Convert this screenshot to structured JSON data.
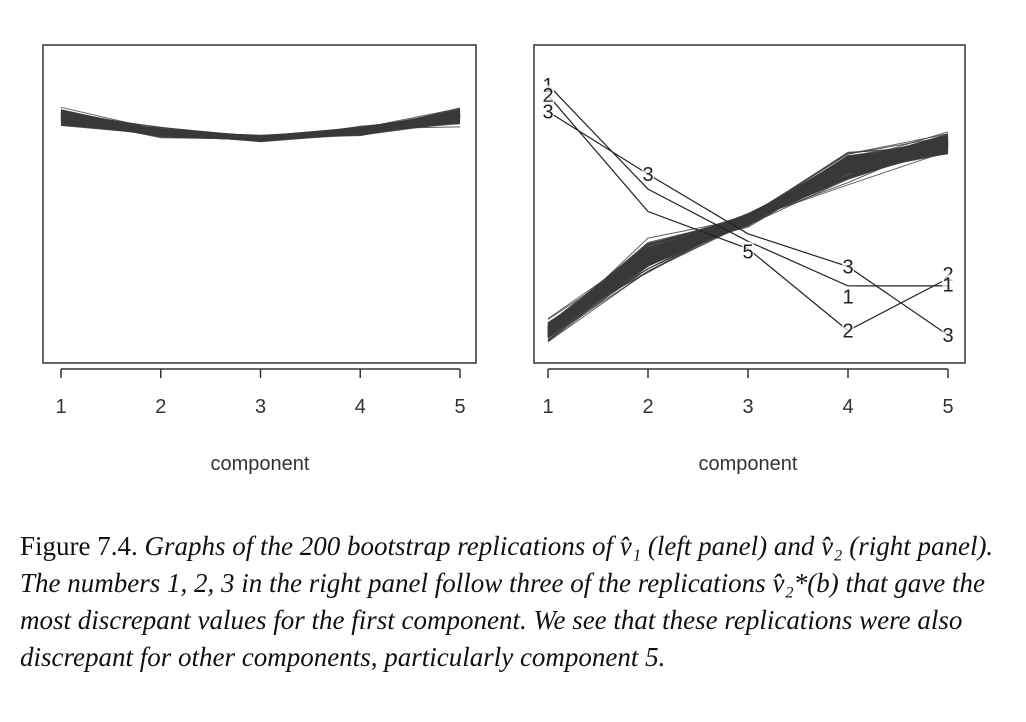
{
  "chart_data": [
    {
      "type": "line",
      "panel": "left",
      "xlabel": "component",
      "ylabel": "",
      "x": [
        1,
        2,
        3,
        4,
        5
      ],
      "x_tick_labels": [
        "1",
        "2",
        "3",
        "4",
        "5"
      ],
      "ylim": [
        -1,
        1
      ],
      "grid": false,
      "n_replications": 200,
      "series_center": [
        0.58,
        0.48,
        0.44,
        0.49,
        0.59
      ],
      "series_spread": [
        0.07,
        0.04,
        0.03,
        0.04,
        0.07
      ]
    },
    {
      "type": "line",
      "panel": "right",
      "xlabel": "component",
      "ylabel": "",
      "x": [
        1,
        2,
        3,
        4,
        5
      ],
      "x_tick_labels": [
        "1",
        "2",
        "3",
        "4",
        "5"
      ],
      "ylim": [
        -1,
        1
      ],
      "grid": false,
      "n_replications": 200,
      "series_center": [
        -0.85,
        -0.35,
        -0.1,
        0.25,
        0.4
      ],
      "series_spread": [
        0.1,
        0.14,
        0.06,
        0.13,
        0.1
      ],
      "highlighted_series": [
        {
          "name": "1",
          "values": [
            0.8,
            0.1,
            -0.25,
            -0.55,
            -0.55
          ]
        },
        {
          "name": "2",
          "values": [
            0.73,
            -0.05,
            -0.3,
            -0.85,
            -0.5
          ]
        },
        {
          "name": "3",
          "values": [
            0.62,
            0.2,
            -0.2,
            -0.42,
            -0.88
          ]
        }
      ],
      "annotations": [
        {
          "text": "1",
          "x": 1,
          "y": 0.8
        },
        {
          "text": "2",
          "x": 1,
          "y": 0.73
        },
        {
          "text": "3",
          "x": 1,
          "y": 0.62
        },
        {
          "text": "3",
          "x": 2,
          "y": 0.2
        },
        {
          "text": "5",
          "x": 3,
          "y": -0.32
        },
        {
          "text": "3",
          "x": 4,
          "y": -0.42
        },
        {
          "text": "1",
          "x": 4,
          "y": -0.62
        },
        {
          "text": "2",
          "x": 4,
          "y": -0.85
        },
        {
          "text": "2",
          "x": 5,
          "y": -0.47
        },
        {
          "text": "1",
          "x": 5,
          "y": -0.54
        },
        {
          "text": "3",
          "x": 5,
          "y": -0.88
        }
      ]
    }
  ],
  "caption": {
    "lead": "Figure 7.4.",
    "body": "Graphs of the 200 bootstrap replications of v̂₁ (left panel) and v̂₂ (right panel). The numbers 1, 2, 3 in the right panel follow three of the replications v̂₂*(b) that gave the most discrepant values for the first component. We see that these replications were also discrepant for other components, particularly component 5."
  },
  "colors": {
    "line": "#3a3a3a",
    "frame": "#333333"
  }
}
